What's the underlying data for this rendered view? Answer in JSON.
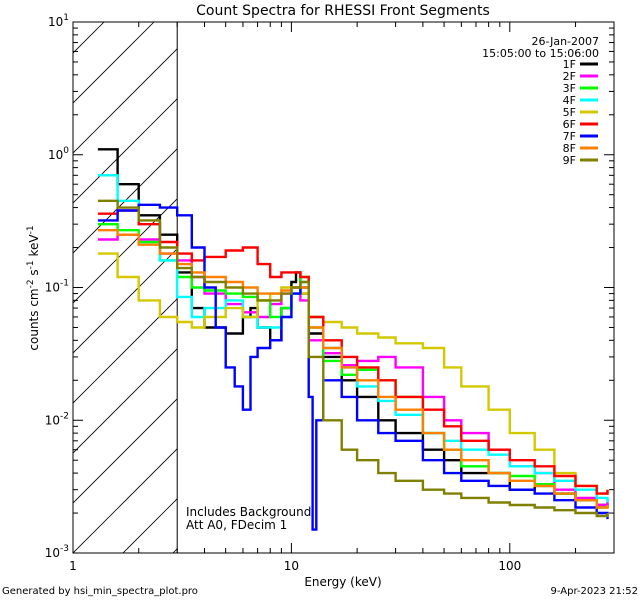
{
  "chart_data": {
    "type": "line",
    "title": "Count Spectra for RHESSI Front Segments",
    "xlabel": "Energy (keV)",
    "ylabel_parts": [
      "counts cm",
      "-2",
      " s",
      "-1",
      " keV",
      "-1"
    ],
    "xscale": "log",
    "yscale": "log",
    "xlim": [
      1,
      300
    ],
    "ylim": [
      0.001,
      10
    ],
    "x_ticks": [
      {
        "value": 1,
        "label": "1"
      },
      {
        "value": 10,
        "label": "10"
      },
      {
        "value": 100,
        "label": "100"
      }
    ],
    "y_ticks": [
      {
        "value": 0.001,
        "base": "10",
        "exp": "-3"
      },
      {
        "value": 0.01,
        "base": "10",
        "exp": "-2"
      },
      {
        "value": 0.1,
        "base": "10",
        "exp": "-1"
      },
      {
        "value": 1,
        "base": "10",
        "exp": "0"
      },
      {
        "value": 10,
        "base": "10",
        "exp": "1"
      }
    ],
    "hatched_region": [
      1,
      3
    ],
    "legend": {
      "position": "top-right",
      "date": "26-Jan-2007",
      "time_range": "15:05:00 to 15:06:00"
    },
    "annotations": [
      "Includes Background",
      "Att A0, FDecim 1"
    ],
    "series": [
      {
        "name": "1F",
        "color": "#000000",
        "x": [
          1.3,
          1.6,
          2,
          2.5,
          3,
          3.5,
          4,
          5,
          6,
          6.5,
          7,
          8,
          9,
          10,
          10.5,
          11,
          12,
          14,
          17,
          20,
          25,
          30,
          40,
          50,
          60,
          80,
          100,
          130,
          160,
          200,
          250,
          280
        ],
        "y": [
          1.1,
          0.6,
          0.35,
          0.25,
          0.13,
          0.07,
          0.05,
          0.045,
          0.06,
          0.07,
          0.05,
          0.04,
          0.07,
          0.11,
          0.13,
          0.09,
          0.045,
          0.03,
          0.02,
          0.015,
          0.01,
          0.008,
          0.006,
          0.005,
          0.004,
          0.004,
          0.003,
          0.0032,
          0.0028,
          0.0025,
          0.0023,
          0.0022
        ]
      },
      {
        "name": "2F",
        "color": "#ff00ff",
        "x": [
          1.3,
          1.6,
          2,
          2.5,
          3,
          3.5,
          4,
          5,
          6,
          7,
          8,
          9,
          10,
          11,
          12,
          14,
          17,
          20,
          25,
          30,
          40,
          50,
          60,
          80,
          100,
          130,
          160,
          200,
          250,
          280
        ],
        "y": [
          0.23,
          0.25,
          0.23,
          0.18,
          0.16,
          0.12,
          0.09,
          0.075,
          0.065,
          0.06,
          0.075,
          0.09,
          0.1,
          0.08,
          0.04,
          0.032,
          0.026,
          0.028,
          0.03,
          0.025,
          0.015,
          0.01,
          0.008,
          0.006,
          0.0045,
          0.004,
          0.003,
          0.0026,
          0.0023,
          0.0025
        ]
      },
      {
        "name": "3F",
        "color": "#00ff00",
        "x": [
          1.3,
          1.6,
          2,
          2.5,
          3,
          3.5,
          4,
          5,
          6,
          7,
          8,
          9,
          10,
          11,
          12,
          14,
          17,
          20,
          25,
          30,
          40,
          50,
          60,
          80,
          100,
          130,
          160,
          200,
          250,
          280
        ],
        "y": [
          0.3,
          0.27,
          0.22,
          0.16,
          0.12,
          0.1,
          0.095,
          0.09,
          0.085,
          0.08,
          0.06,
          0.07,
          0.09,
          0.12,
          0.05,
          0.028,
          0.022,
          0.024,
          0.02,
          0.015,
          0.008,
          0.006,
          0.0045,
          0.004,
          0.0038,
          0.0033,
          0.0028,
          0.0025,
          0.0022,
          0.0023
        ]
      },
      {
        "name": "4F",
        "color": "#00ffff",
        "x": [
          1.3,
          1.6,
          2,
          2.5,
          3,
          3.5,
          4,
          5,
          6,
          7,
          8,
          9,
          10,
          11,
          12,
          14,
          17,
          20,
          25,
          30,
          40,
          50,
          60,
          80,
          100,
          130,
          160,
          200,
          250,
          280
        ],
        "y": [
          0.7,
          0.45,
          0.3,
          0.16,
          0.085,
          0.06,
          0.07,
          0.08,
          0.06,
          0.05,
          0.05,
          0.06,
          0.09,
          0.11,
          0.06,
          0.035,
          0.025,
          0.018,
          0.014,
          0.011,
          0.008,
          0.007,
          0.006,
          0.0055,
          0.0045,
          0.004,
          0.0035,
          0.003,
          0.0026,
          0.0024
        ]
      },
      {
        "name": "5F",
        "color": "#d4c800",
        "x": [
          1.3,
          1.6,
          2,
          2.5,
          3,
          3.5,
          4,
          5,
          6,
          7,
          8,
          9,
          10,
          11,
          12,
          14,
          17,
          20,
          25,
          30,
          40,
          50,
          60,
          80,
          100,
          130,
          160,
          200,
          250,
          280
        ],
        "y": [
          0.18,
          0.12,
          0.08,
          0.06,
          0.055,
          0.05,
          0.06,
          0.07,
          0.06,
          0.08,
          0.09,
          0.1,
          0.1,
          0.09,
          0.06,
          0.055,
          0.05,
          0.045,
          0.042,
          0.038,
          0.035,
          0.025,
          0.018,
          0.012,
          0.008,
          0.006,
          0.004,
          0.0032,
          0.0028,
          0.003
        ]
      },
      {
        "name": "6F",
        "color": "#ff0000",
        "x": [
          1.3,
          1.6,
          2,
          2.5,
          3,
          3.5,
          4,
          5,
          6,
          7,
          8,
          9,
          10,
          11,
          12,
          14,
          17,
          20,
          25,
          30,
          40,
          50,
          60,
          80,
          100,
          130,
          160,
          200,
          250,
          280
        ],
        "y": [
          0.36,
          0.38,
          0.3,
          0.22,
          0.18,
          0.16,
          0.17,
          0.19,
          0.2,
          0.15,
          0.12,
          0.13,
          0.13,
          0.12,
          0.06,
          0.04,
          0.03,
          0.025,
          0.02,
          0.015,
          0.012,
          0.009,
          0.007,
          0.006,
          0.005,
          0.0045,
          0.0038,
          0.0032,
          0.0028,
          0.003
        ]
      },
      {
        "name": "7F",
        "color": "#0000ff",
        "x": [
          1.3,
          1.6,
          2,
          2.5,
          3,
          3.5,
          4,
          4.5,
          5,
          5.5,
          6,
          6.5,
          7,
          8,
          9,
          10,
          11,
          12,
          12.5,
          13,
          14,
          17,
          20,
          25,
          30,
          40,
          50,
          60,
          80,
          100,
          130,
          160,
          200,
          250,
          280
        ],
        "y": [
          0.32,
          0.38,
          0.42,
          0.4,
          0.35,
          0.2,
          0.1,
          0.05,
          0.025,
          0.018,
          0.012,
          0.03,
          0.035,
          0.04,
          0.06,
          0.09,
          0.1,
          0.015,
          0.0015,
          0.01,
          0.02,
          0.015,
          0.01,
          0.008,
          0.007,
          0.005,
          0.004,
          0.0035,
          0.0032,
          0.003,
          0.0028,
          0.0025,
          0.0022,
          0.002,
          0.0018
        ]
      },
      {
        "name": "8F",
        "color": "#ff8000",
        "x": [
          1.3,
          1.6,
          2,
          2.5,
          3,
          3.5,
          4,
          5,
          6,
          7,
          8,
          9,
          10,
          11,
          12,
          14,
          17,
          20,
          25,
          30,
          40,
          50,
          60,
          80,
          100,
          130,
          160,
          200,
          250,
          280
        ],
        "y": [
          0.27,
          0.25,
          0.21,
          0.18,
          0.15,
          0.13,
          0.12,
          0.11,
          0.1,
          0.09,
          0.09,
          0.095,
          0.1,
          0.1,
          0.05,
          0.035,
          0.025,
          0.02,
          0.015,
          0.012,
          0.008,
          0.006,
          0.005,
          0.004,
          0.0035,
          0.0032,
          0.0028,
          0.0025,
          0.0022,
          0.0023
        ]
      },
      {
        "name": "9F",
        "color": "#808000",
        "x": [
          1.3,
          1.6,
          2,
          2.5,
          3,
          3.5,
          4,
          5,
          6,
          7,
          8,
          9,
          10,
          11,
          12,
          14,
          17,
          20,
          25,
          30,
          40,
          50,
          60,
          80,
          100,
          130,
          160,
          200,
          250,
          280
        ],
        "y": [
          0.45,
          0.4,
          0.32,
          0.2,
          0.14,
          0.12,
          0.11,
          0.1,
          0.09,
          0.08,
          0.08,
          0.09,
          0.1,
          0.11,
          0.03,
          0.01,
          0.006,
          0.005,
          0.004,
          0.0035,
          0.003,
          0.0028,
          0.0026,
          0.0024,
          0.0023,
          0.0022,
          0.0021,
          0.002,
          0.0019,
          0.002
        ]
      }
    ]
  },
  "footer": {
    "generated_by": "Generated by hsi_min_spectra_plot.pro",
    "date": "9-Apr-2023 21:52"
  }
}
